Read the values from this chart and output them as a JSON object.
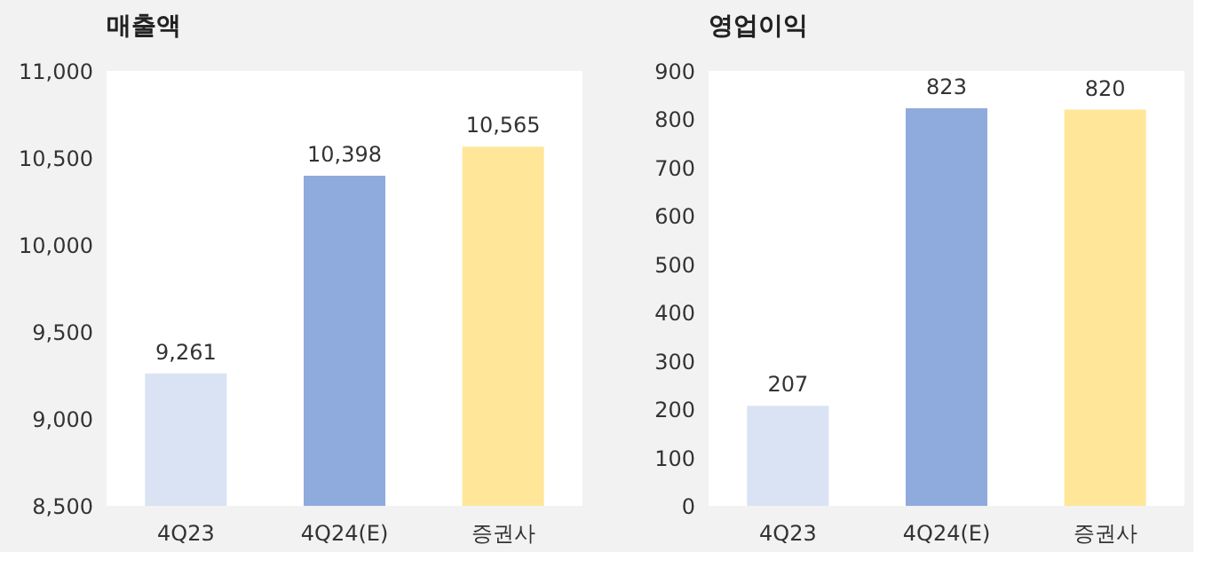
{
  "chart_data": [
    {
      "type": "bar",
      "title": "매출액",
      "categories": [
        "4Q23",
        "4Q24(E)",
        "증권사"
      ],
      "values": [
        9261,
        10398,
        10565
      ],
      "value_labels": [
        "9,261",
        "10,398",
        "10,565"
      ],
      "data_labels": true,
      "colors": [
        "#dae3f3",
        "#8faadc",
        "#ffe699"
      ],
      "ylim": [
        8500,
        11000
      ],
      "yticks": [
        {
          "value": 8500,
          "label": "8,500"
        },
        {
          "value": 9000,
          "label": "9,000"
        },
        {
          "value": 9500,
          "label": "9,500"
        },
        {
          "value": 10000,
          "label": "10,000"
        },
        {
          "value": 10500,
          "label": "10,500"
        },
        {
          "value": 11000,
          "label": "11,000"
        }
      ],
      "grid": false,
      "legend": false
    },
    {
      "type": "bar",
      "title": "영업이익",
      "categories": [
        "4Q23",
        "4Q24(E)",
        "증권사"
      ],
      "values": [
        207,
        823,
        820
      ],
      "data_labels": true,
      "colors": [
        "#dae3f3",
        "#8faadc",
        "#ffe699"
      ],
      "ylim": [
        0,
        900
      ],
      "yticks": [
        0,
        100,
        200,
        300,
        400,
        500,
        600,
        700,
        800,
        900
      ],
      "grid": false,
      "legend": false
    }
  ]
}
